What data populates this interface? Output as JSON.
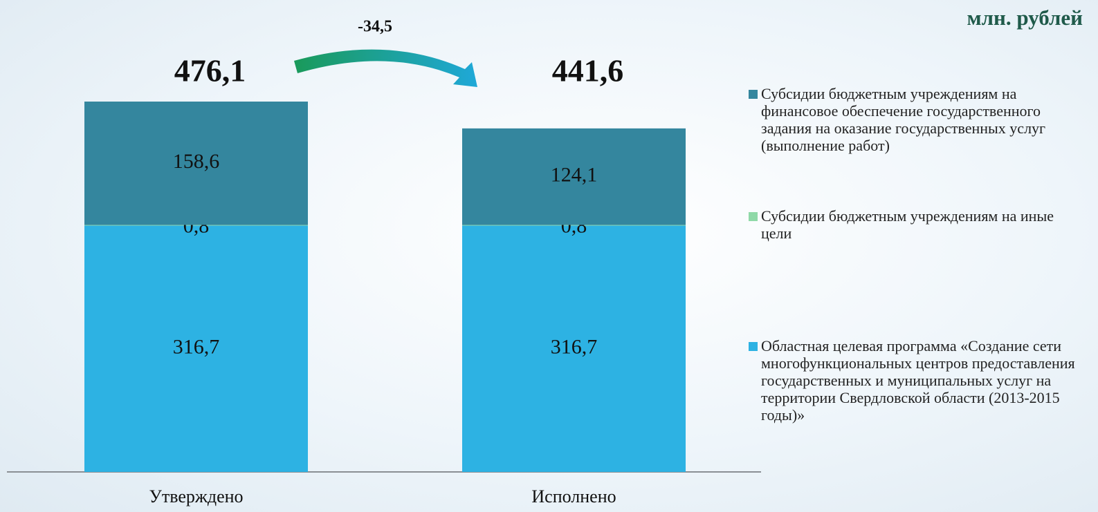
{
  "chart_data": {
    "type": "stacked_bar",
    "unit": "млн. рублей",
    "categories": [
      "Утверждено",
      "Исполнено"
    ],
    "series": [
      {
        "name": "Областная целевая программа «Создание сети многофункциональных центров предоставления государственных и муниципальных услуг на территории Свердловской области (2013-2015 годы)»",
        "color": "#2db2e3",
        "values": [
          316.7,
          316.7
        ],
        "value_labels": [
          "316,7",
          "316,7"
        ]
      },
      {
        "name": "Субсидии бюджетным учреждениям на иные цели",
        "color": "#8fd9a8",
        "values": [
          0.8,
          0.8
        ],
        "value_labels": [
          "0,8",
          "0,8"
        ]
      },
      {
        "name": "Субсидии бюджетным учреждениям на финансовое обеспечение государственного задания на оказание государственных  услуг (выполнение работ)",
        "color": "#34869e",
        "values": [
          158.6,
          124.1
        ],
        "value_labels": [
          "158,6",
          "124,1"
        ]
      }
    ],
    "totals": [
      476.1,
      441.6
    ],
    "total_labels": [
      "476,1",
      "441,6"
    ],
    "difference": -34.5,
    "difference_label": "-34,5"
  }
}
